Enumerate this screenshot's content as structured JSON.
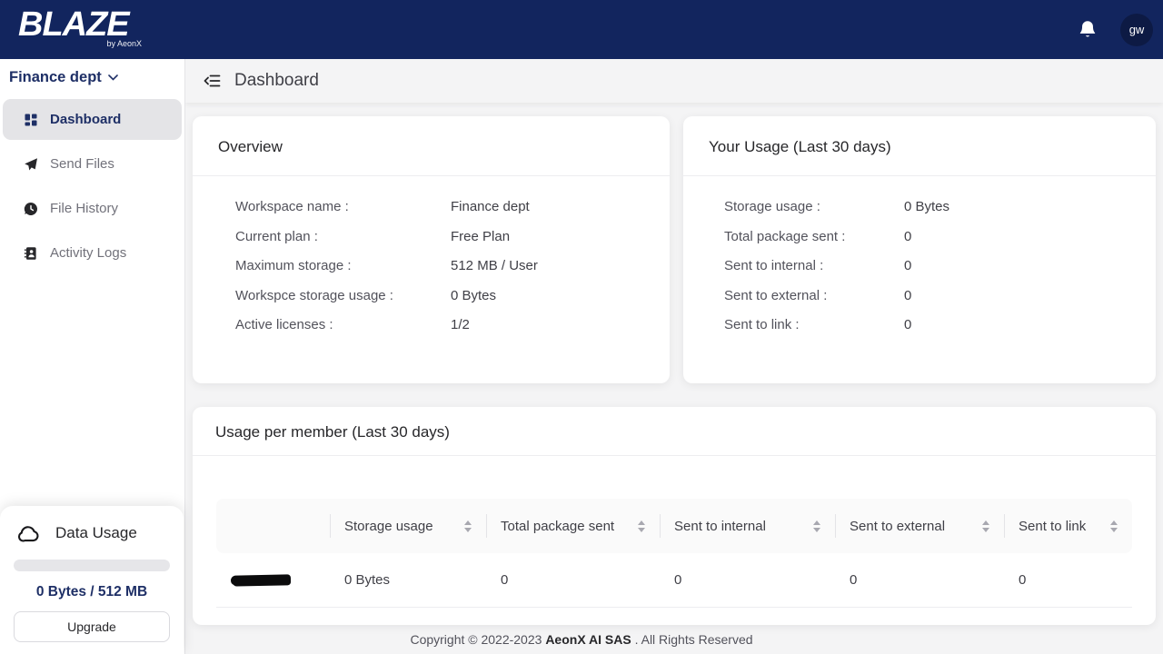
{
  "brand": {
    "name": "BLAZE",
    "byline": "by AeonX"
  },
  "topbar": {
    "avatar_initials": "gw"
  },
  "sidebar": {
    "workspace_selector": "Finance dept",
    "nav": [
      {
        "label": "Dashboard",
        "active": true
      },
      {
        "label": "Send Files",
        "active": false
      },
      {
        "label": "File History",
        "active": false
      },
      {
        "label": "Activity Logs",
        "active": false
      }
    ],
    "data_usage": {
      "title": "Data Usage",
      "progress_percent": 0,
      "usage_text": "0 Bytes / 512 MB",
      "upgrade_label": "Upgrade"
    }
  },
  "page": {
    "title": "Dashboard"
  },
  "cards": {
    "overview": {
      "title": "Overview",
      "rows": [
        {
          "label": "Workspace name :",
          "value": "Finance dept"
        },
        {
          "label": "Current plan :",
          "value": "Free Plan"
        },
        {
          "label": "Maximum storage :",
          "value": "512 MB / User"
        },
        {
          "label": "Workspce storage usage :",
          "value": "0 Bytes"
        },
        {
          "label": "Active licenses :",
          "value": "1/2"
        }
      ]
    },
    "your_usage": {
      "title": "Your Usage (Last 30 days)",
      "rows": [
        {
          "label": "Storage usage :",
          "value": "0 Bytes"
        },
        {
          "label": "Total package sent :",
          "value": "0"
        },
        {
          "label": "Sent to internal :",
          "value": "0"
        },
        {
          "label": "Sent to external :",
          "value": "0"
        },
        {
          "label": "Sent to link :",
          "value": "0"
        }
      ]
    },
    "usage_per_member": {
      "title": "Usage per member (Last 30 days)",
      "columns": [
        "",
        "Storage usage",
        "Total package sent",
        "Sent to internal",
        "Sent to external",
        "Sent to link"
      ],
      "rows": [
        {
          "member_name_redacted": true,
          "storage_usage": "0 Bytes",
          "total_package_sent": "0",
          "sent_to_internal": "0",
          "sent_to_external": "0",
          "sent_to_link": "0"
        }
      ]
    }
  },
  "footer": {
    "prefix": "Copyright © 2022-2023 ",
    "company": "AeonX AI SAS",
    "suffix": " . All Rights Reserved"
  },
  "colors": {
    "navy": "#12255e",
    "accent_text": "#1e2f66",
    "page_bg": "#f4f4f5",
    "active_item_bg": "#e4e4e7"
  }
}
